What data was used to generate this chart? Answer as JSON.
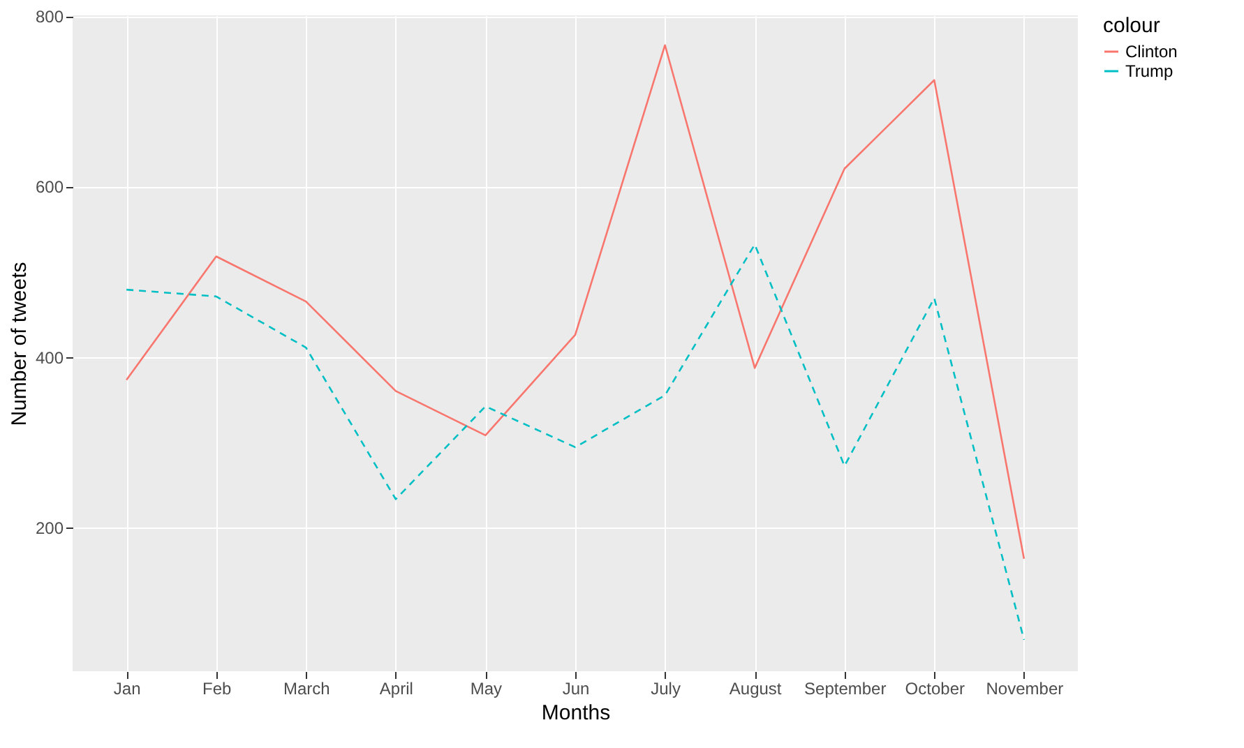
{
  "chart_data": {
    "type": "line",
    "xlabel": "Months",
    "ylabel": "Number of tweets",
    "legend_title": "colour",
    "legend": "right",
    "grid": true,
    "categories": [
      "Jan",
      "Feb",
      "March",
      "April",
      "May",
      "Jun",
      "July",
      "August",
      "September",
      "October",
      "November"
    ],
    "ylim": [
      31,
      801
    ],
    "yticks": [
      200,
      400,
      600,
      800
    ],
    "series": [
      {
        "name": "Clinton",
        "color": "#f8766d",
        "line_style": "solid",
        "values": [
          373,
          518,
          465,
          360,
          308,
          426,
          766,
          387,
          621,
          725,
          163
        ]
      },
      {
        "name": "Trump",
        "color": "#00bfc4",
        "line_style": "dashed",
        "values": [
          479,
          471,
          411,
          233,
          342,
          294,
          355,
          532,
          272,
          469,
          68
        ]
      }
    ]
  }
}
